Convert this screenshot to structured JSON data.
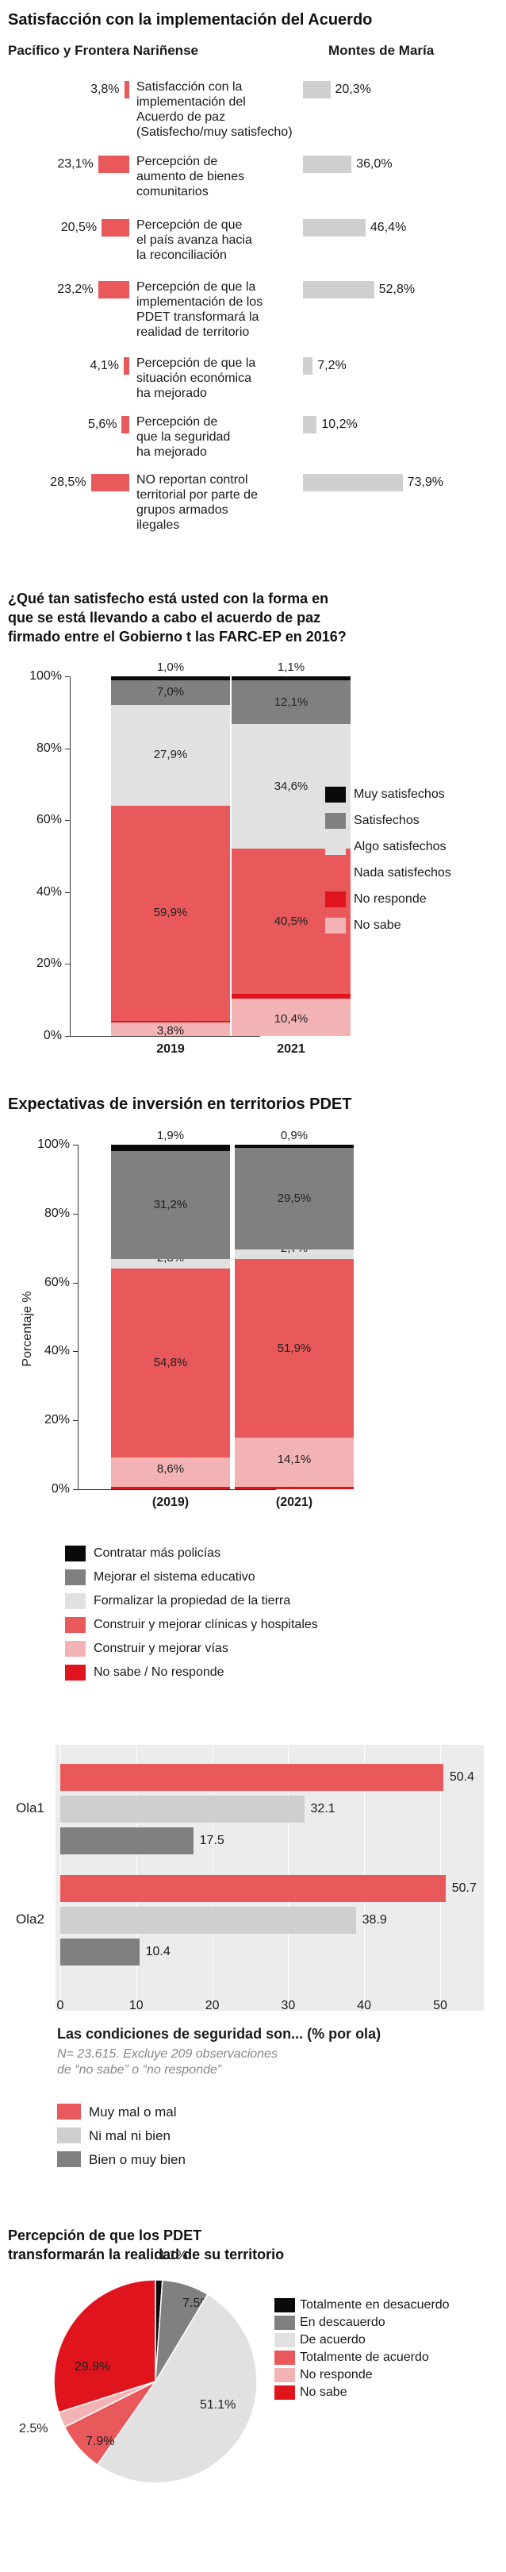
{
  "colors": {
    "red": "#e9585b",
    "gray_light": "#cfcfcf",
    "very_light": "#e1e1e1",
    "dark_gray": "#808080",
    "black": "#0a0a0a",
    "bright_red": "#e0141c",
    "pink": "#f3b3b4"
  },
  "section1": {
    "title": "Satisfacción con la implementación del Acuerdo",
    "col_left": "Pacífico y Frontera Nariñense",
    "col_right": "Montes de María"
  },
  "section2": {
    "title_lines": [
      "¿Qué tan satisfecho está usted con la forma en",
      "que se está llevando a cabo el acuerdo de paz",
      "firmado entre el Gobierno t las FARC-EP en 2016?"
    ]
  },
  "section3": {
    "title": "Expectativas de inversión en territorios PDET",
    "ylabel": "Porcentaje %"
  },
  "section4": {
    "title": "Las condiciones de seguridad son... (% por ola)",
    "note_lines": [
      "N= 23.615. Excluye 209 observaciones",
      "de “no sabe” o “no responde”"
    ]
  },
  "section5": {
    "title_lines": [
      "Percepción de que los PDET",
      "transformarán la realidad de su territorio"
    ]
  },
  "chart_data": [
    {
      "type": "bar",
      "orientation": "horizontal-diverging",
      "categories": [
        [
          "Satisfacción con la",
          "implementación del",
          "Acuerdo de paz",
          "(Satisfecho/muy satisfecho)"
        ],
        [
          "Percepción de",
          "aumento de bienes",
          "comunitarios"
        ],
        [
          "Percepción de que",
          "el país avanza hacia",
          "la reconciliación"
        ],
        [
          "Percepción de que la",
          "implementación de los",
          "PDET transformará la",
          "realidad de territorio"
        ],
        [
          "Percepción de que la",
          "situación económica",
          "ha mejorado"
        ],
        [
          "Percepción de",
          "que la seguridad",
          "ha mejorado"
        ],
        [
          "NO reportan control",
          "territorial por parte de",
          "grupos armados",
          "ilegales"
        ]
      ],
      "series": [
        {
          "name": "Pacífico y Frontera Nariñense",
          "values": [
            3.8,
            23.1,
            20.5,
            23.2,
            4.1,
            5.6,
            28.5
          ],
          "labels": [
            "3,8%",
            "23,1%",
            "20,5%",
            "23,2%",
            "4,1%",
            "5,6%",
            "28,5%"
          ]
        },
        {
          "name": "Montes de María",
          "values": [
            20.3,
            36.0,
            46.4,
            52.8,
            7.2,
            10.2,
            73.9
          ],
          "labels": [
            "20,3%",
            "36,0%",
            "46,4%",
            "52,8%",
            "7,2%",
            "10,2%",
            "73,9%"
          ]
        }
      ]
    },
    {
      "type": "bar",
      "stacked": true,
      "categories": [
        "2019",
        "2021"
      ],
      "ylim": [
        0,
        100
      ],
      "yticks": [
        "0%",
        "20%",
        "40%",
        "60%",
        "80%",
        "100%"
      ],
      "series": [
        {
          "name": "No sabe",
          "values": [
            3.8,
            10.4
          ],
          "labels": [
            "3,8%",
            "10,4%"
          ]
        },
        {
          "name": "No responde",
          "values": [
            0.4,
            1.2
          ],
          "labels": [
            "0,4%",
            "1,2%"
          ]
        },
        {
          "name": "Nada satisfechos",
          "values": [
            59.9,
            40.5
          ],
          "labels": [
            "59,9%",
            "40,5%"
          ]
        },
        {
          "name": "Algo satisfechos",
          "values": [
            27.9,
            34.6
          ],
          "labels": [
            "27,9%",
            "34,6%"
          ]
        },
        {
          "name": "Satisfechos",
          "values": [
            7.0,
            12.1
          ],
          "labels": [
            "7,0%",
            "12,1%"
          ]
        },
        {
          "name": "Muy satisfechos",
          "values": [
            1.0,
            1.1
          ],
          "labels": [
            "1,0%",
            "1,1%"
          ]
        }
      ],
      "legend_order": [
        "Muy satisfechos",
        "Satisfechos",
        "Algo satisfechos",
        "Nada satisfechos",
        "No responde",
        "No sabe"
      ]
    },
    {
      "type": "bar",
      "stacked": true,
      "categories": [
        "(2019)",
        "(2021)"
      ],
      "ylabel": "Porcentaje %",
      "ylim": [
        0,
        100
      ],
      "yticks": [
        "0%",
        "20%",
        "40%",
        "60%",
        "80%",
        "100%"
      ],
      "series": [
        {
          "name": "No sabe / No responde",
          "values": [
            0.7,
            0.8
          ],
          "labels": [
            "0,7%",
            "0,8%"
          ]
        },
        {
          "name": "Construir y mejorar vías",
          "values": [
            8.6,
            14.1
          ],
          "labels": [
            "8,6%",
            "14,1%"
          ]
        },
        {
          "name": "Construir y mejorar clínicas y hospitales",
          "values": [
            54.8,
            51.9
          ],
          "labels": [
            "54,8%",
            "51,9%"
          ]
        },
        {
          "name": "Formalizar la propiedad de la tierra",
          "values": [
            2.8,
            2.7
          ],
          "labels": [
            "2,8%",
            "2,7%"
          ]
        },
        {
          "name": "Mejorar el sistema educativo",
          "values": [
            31.2,
            29.5
          ],
          "labels": [
            "31,2%",
            "29,5%"
          ]
        },
        {
          "name": "Contratar más policías",
          "values": [
            1.9,
            0.9
          ],
          "labels": [
            "1,9%",
            "0,9%"
          ]
        }
      ],
      "legend_order": [
        "Contratar más policías",
        "Mejorar el sistema educativo",
        "Formalizar la propiedad de la tierra",
        "Construir y mejorar clínicas y hospitales",
        "Construir y mejorar vías",
        "No sabe / No responde"
      ]
    },
    {
      "type": "bar",
      "orientation": "horizontal",
      "title": "Las condiciones de seguridad son... (% por ola)",
      "categories": [
        "Ola1",
        "Ola2"
      ],
      "xlim": [
        0,
        52
      ],
      "xticks": [
        "0",
        "10",
        "20",
        "30",
        "40",
        "50"
      ],
      "series": [
        {
          "name": "Muy mal o mal",
          "values": [
            50.4,
            50.7
          ],
          "labels": [
            "50.4",
            "50.7"
          ]
        },
        {
          "name": "Ni mal ni bien",
          "values": [
            32.1,
            38.9
          ],
          "labels": [
            "32.1",
            "38.9"
          ]
        },
        {
          "name": "Bien o muy bien",
          "values": [
            17.5,
            10.4
          ],
          "labels": [
            "17.5",
            "10.4"
          ]
        }
      ]
    },
    {
      "type": "pie",
      "slices": [
        {
          "name": "Totalmente en desacuerdo",
          "value": 1.1,
          "label": "1.1%"
        },
        {
          "name": "En descauerdo",
          "value": 7.5,
          "label": "7.5%"
        },
        {
          "name": "De acuerdo",
          "value": 51.1,
          "label": "51.1%"
        },
        {
          "name": "Totalmente de acuerdo",
          "value": 7.9,
          "label": "7.9%"
        },
        {
          "name": "No responde",
          "value": 2.5,
          "label": "2.5%"
        },
        {
          "name": "No sabe",
          "value": 29.9,
          "label": "29.9%"
        }
      ]
    }
  ]
}
